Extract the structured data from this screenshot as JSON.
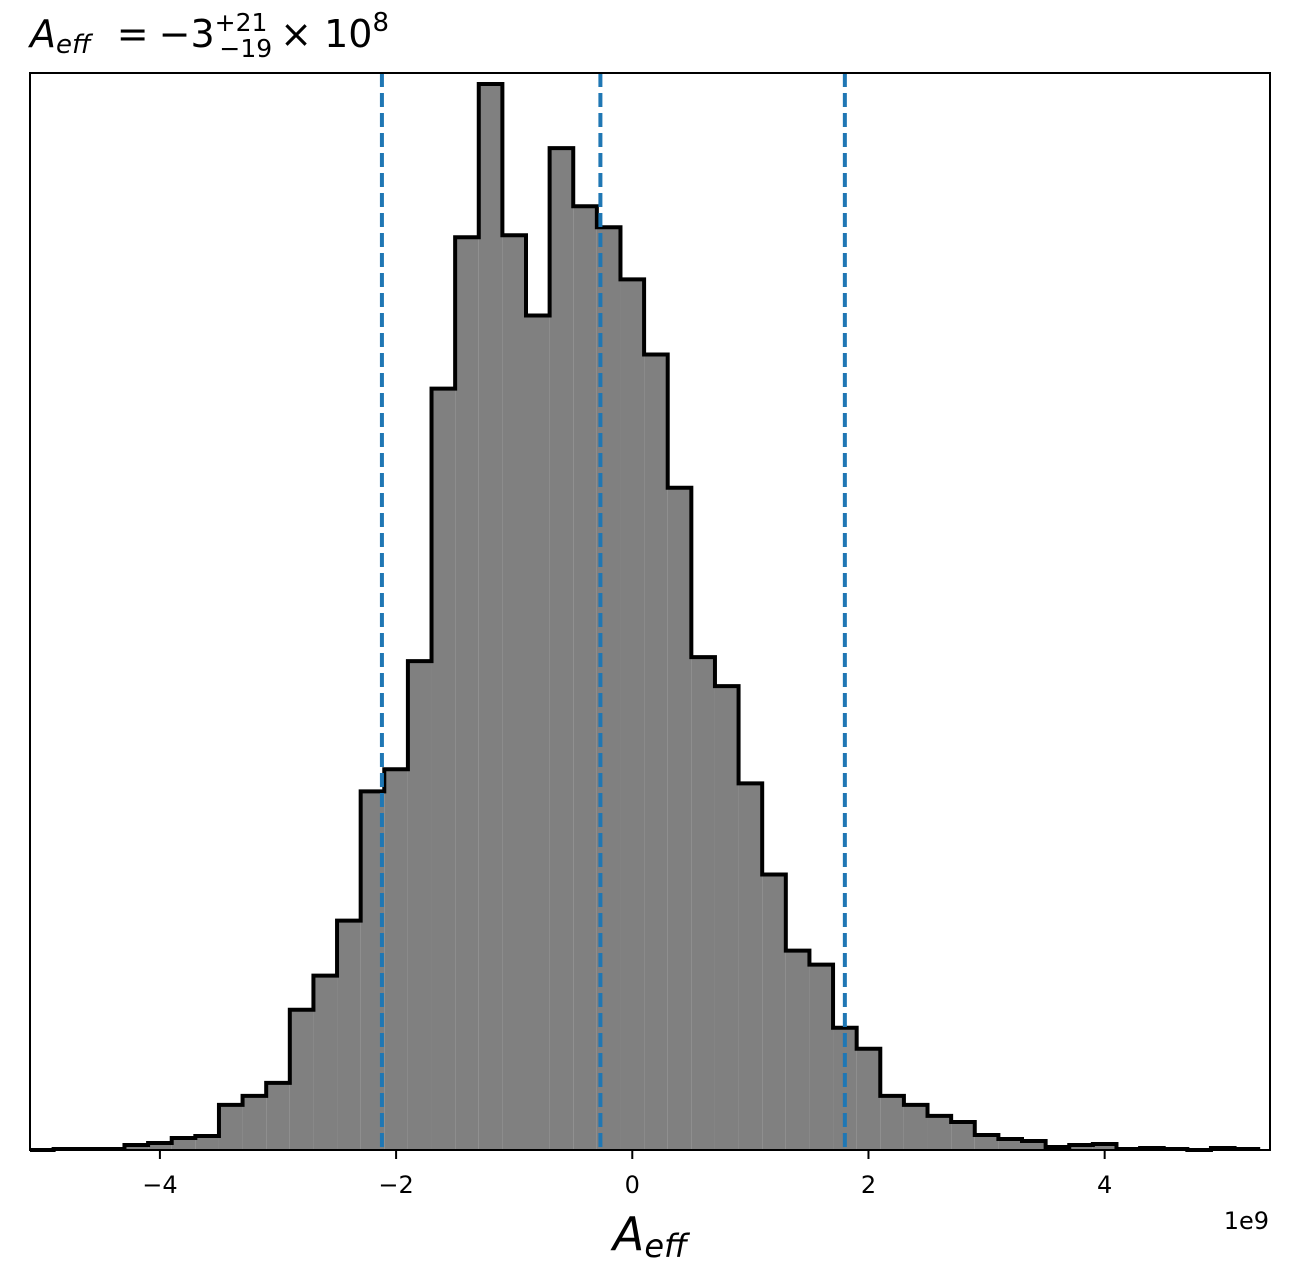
{
  "chart_data": {
    "type": "histogram",
    "title": {
      "symbol": "A",
      "symbol_sub": "eff",
      "equals": "=",
      "value": "−3",
      "upper": "+21",
      "lower": "−19",
      "times": "× 10",
      "exponent": "8"
    },
    "xlabel": {
      "symbol": "A",
      "sub": "eff"
    },
    "x_offset_label": "1e9",
    "x_scale": 1000000000,
    "xlim": [
      -5100000000.0,
      5400000000.0
    ],
    "ylim": [
      0,
      1
    ],
    "x_ticks": [
      {
        "value": -4000000000.0,
        "label": "−4"
      },
      {
        "value": -2000000000.0,
        "label": "−2"
      },
      {
        "value": 0,
        "label": "0"
      },
      {
        "value": 2000000000.0,
        "label": "2"
      },
      {
        "value": 4000000000.0,
        "label": "4"
      }
    ],
    "y_ticks_shown": false,
    "histogram": {
      "fill_color": "#808080",
      "edge_color": "#000000",
      "bin_edges": [
        -5100000000.0,
        -4900000000.0,
        -4700000000.0,
        -4500000000.0,
        -4300000000.0,
        -4100000000.0,
        -3900000000.0,
        -3700000000.0,
        -3500000000.0,
        -3300000000.0,
        -3100000000.0,
        -2900000000.0,
        -2700000000.0,
        -2500000000.0,
        -2300000000.0,
        -2100000000.0,
        -1900000000.0,
        -1700000000.0,
        -1500000000.0,
        -1300000000.0,
        -1100000000.0,
        -900000000.0,
        -700000000.0,
        -500000000.0,
        -300000000.0,
        -100000000.0,
        100000000.0,
        300000000.0,
        500000000.0,
        700000000.0,
        900000000.0,
        1100000000.0,
        1300000000.0,
        1500000000.0,
        1700000000.0,
        1900000000.0,
        2100000000.0,
        2300000000.0,
        2500000000.0,
        2700000000.0,
        2900000000.0,
        3100000000.0,
        3300000000.0,
        3500000000.0,
        3700000000.0,
        3900000000.0,
        4100000000.0,
        4300000000.0,
        4500000000.0,
        4700000000.0,
        4900000000.0,
        5100000000.0,
        5300000000.0
      ],
      "heights": [
        0.0,
        0.001,
        0.001,
        0.001,
        0.005,
        0.007,
        0.012,
        0.014,
        0.045,
        0.054,
        0.067,
        0.14,
        0.174,
        0.229,
        0.358,
        0.38,
        0.488,
        0.76,
        0.911,
        1.064,
        0.913,
        0.833,
        1.0,
        0.942,
        0.921,
        0.869,
        0.794,
        0.661,
        0.492,
        0.463,
        0.366,
        0.275,
        0.199,
        0.185,
        0.122,
        0.101,
        0.054,
        0.045,
        0.034,
        0.028,
        0.015,
        0.011,
        0.009,
        0.003,
        0.005,
        0.006,
        0.001,
        0.002,
        0.001,
        0.0,
        0.002,
        0.001
      ]
    },
    "vlines": {
      "color": "#1f77b4",
      "style": "dashed",
      "values": [
        -2120000000.0,
        -270000000.0,
        1800000000.0
      ]
    }
  }
}
